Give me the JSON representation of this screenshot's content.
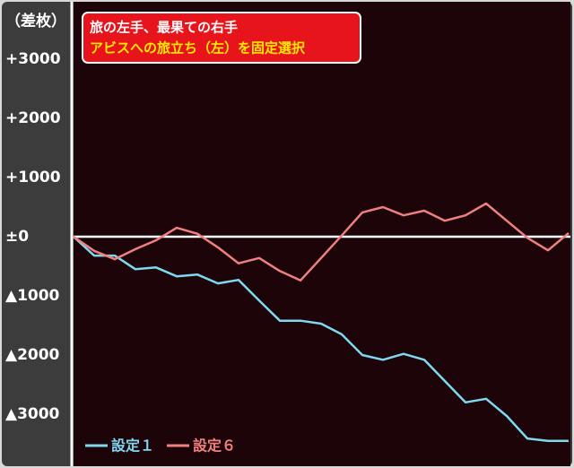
{
  "chart_data": {
    "type": "line",
    "title": "旅の左手、最果ての右手",
    "subtitle": "アビスへの旅立ち（左）を固定選択",
    "y_label": "（差枚）",
    "ylim": [
      -3800,
      3900
    ],
    "yticks": [
      {
        "value": 3000,
        "label": "+3000"
      },
      {
        "value": 2000,
        "label": "+2000"
      },
      {
        "value": 1000,
        "label": "+1000"
      },
      {
        "value": 0,
        "label": "±0"
      },
      {
        "value": -1000,
        "label": "▲1000"
      },
      {
        "value": -2000,
        "label": "▲2000"
      },
      {
        "value": -3000,
        "label": "▲3000"
      }
    ],
    "zero_line": true,
    "series": [
      {
        "name": "設定１",
        "color": "#7fd8f0",
        "values": [
          0,
          -320,
          -320,
          -550,
          -520,
          -670,
          -640,
          -790,
          -730,
          -1080,
          -1420,
          -1420,
          -1470,
          -1650,
          -2000,
          -2080,
          -1980,
          -2080,
          -2440,
          -2800,
          -2740,
          -3030,
          -3410,
          -3450,
          -3450
        ]
      },
      {
        "name": "設定６",
        "color": "#f08080",
        "values": [
          0,
          -240,
          -380,
          -210,
          -60,
          150,
          50,
          -180,
          -450,
          -360,
          -580,
          -740,
          -360,
          20,
          410,
          500,
          360,
          440,
          270,
          360,
          560,
          270,
          -20,
          -230,
          60
        ]
      }
    ]
  }
}
